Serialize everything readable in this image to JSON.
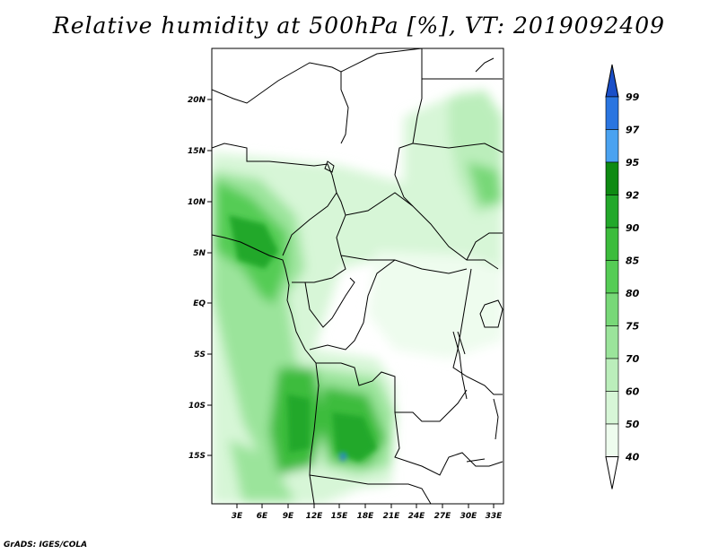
{
  "title": "Relative humidity at 500hPa [%], VT: 2019092409",
  "credit": "GrADS: IGES/COLA",
  "map": {
    "lon_ticks": [
      "3E",
      "6E",
      "9E",
      "12E",
      "15E",
      "18E",
      "21E",
      "24E",
      "27E",
      "30E",
      "33E"
    ],
    "lat_ticks": [
      "20N",
      "15N",
      "10N",
      "5N",
      "EQ",
      "5S",
      "10S",
      "15S"
    ],
    "lon_range": [
      0,
      34
    ],
    "lat_range": [
      -20,
      24
    ]
  },
  "colorbar": {
    "levels": [
      "99",
      "97",
      "95",
      "92",
      "90",
      "85",
      "80",
      "75",
      "70",
      "60",
      "50",
      "40"
    ],
    "colors": [
      "#1a4fc8",
      "#2a75e0",
      "#4aa2f0",
      "#0e8a12",
      "#22a82a",
      "#3cbc3c",
      "#55cc55",
      "#78d878",
      "#9be49b",
      "#bbeebb",
      "#d7f6d7",
      "#eefcee",
      "#ffffff"
    ]
  }
}
